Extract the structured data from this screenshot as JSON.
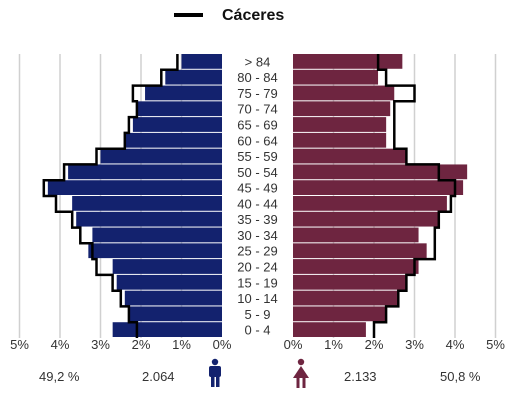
{
  "chart_data": {
    "type": "bar",
    "subtype": "population-pyramid",
    "legend": {
      "label": "Cáceres",
      "position": "top-center",
      "line_color": "#000000"
    },
    "age_groups": [
      "> 84",
      "80 - 84",
      "75 - 79",
      "70 - 74",
      "65 - 69",
      "60 - 64",
      "55 - 59",
      "50 - 54",
      "45 - 49",
      "40 - 44",
      "35 - 39",
      "30 - 34",
      "25 - 29",
      "20 - 24",
      "15 - 19",
      "10 - 14",
      "5 - 9",
      "0 - 4"
    ],
    "series": [
      {
        "side": "male",
        "color": "#13226e",
        "values": [
          1.0,
          1.4,
          1.9,
          2.1,
          2.2,
          2.4,
          3.0,
          3.8,
          4.3,
          3.7,
          3.6,
          3.2,
          3.3,
          2.7,
          2.6,
          2.4,
          2.3,
          2.7
        ]
      },
      {
        "side": "female",
        "color": "#6e2540",
        "values": [
          2.7,
          2.1,
          2.5,
          2.4,
          2.3,
          2.3,
          2.8,
          4.3,
          4.2,
          3.8,
          3.6,
          3.1,
          3.3,
          3.1,
          2.8,
          2.6,
          2.3,
          1.8
        ]
      }
    ],
    "comparison_outline": {
      "name": "Cáceres",
      "male": [
        1.1,
        1.5,
        2.2,
        2.1,
        2.3,
        2.4,
        3.1,
        3.9,
        4.4,
        4.1,
        3.7,
        3.5,
        3.2,
        3.1,
        2.7,
        2.5,
        2.3,
        2.1
      ],
      "female": [
        2.1,
        2.3,
        3.0,
        2.5,
        2.5,
        2.5,
        2.8,
        3.6,
        4.0,
        3.9,
        3.6,
        3.5,
        3.5,
        3.0,
        2.8,
        2.6,
        2.3,
        2.0
      ]
    },
    "x_ticks_male": [
      "5%",
      "4%",
      "3%",
      "2%",
      "1%",
      "0%"
    ],
    "x_ticks_female": [
      "0%",
      "1%",
      "2%",
      "3%",
      "4%",
      "5%"
    ],
    "xlim": [
      0,
      5
    ],
    "grid": true
  },
  "footer": {
    "male_percent": "49,2 %",
    "male_count": "2.064",
    "female_count": "2.133",
    "female_percent": "50,8 %",
    "male_icon": "male-person-icon",
    "female_icon": "female-person-icon",
    "male_icon_color": "#13226e",
    "female_icon_color": "#6e2540"
  }
}
